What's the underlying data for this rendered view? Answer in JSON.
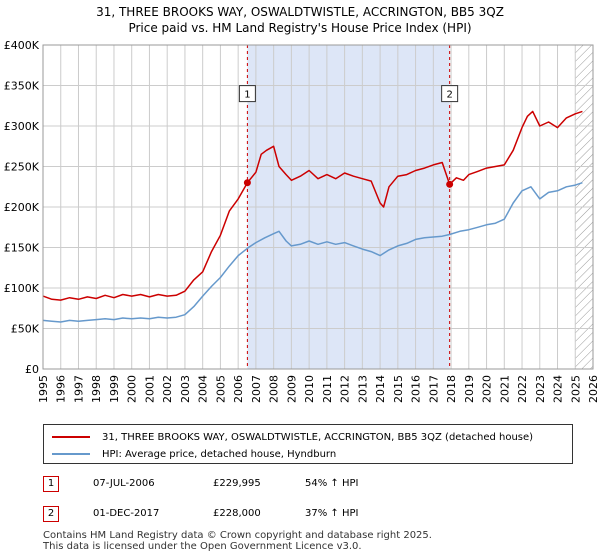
{
  "title_line1": "31, THREE BROOKS WAY, OSWALDTWISTLE, ACCRINGTON, BB5 3QZ",
  "title_line2": "Price paid vs. HM Land Registry's House Price Index (HPI)",
  "chart_data": {
    "type": "line",
    "title": "31, THREE BROOKS WAY, OSWALDTWISTLE, ACCRINGTON, BB5 3QZ - Price paid vs. HM Land Registry's House Price Index (HPI)",
    "xlabel": "",
    "ylabel": "",
    "xlim": [
      1995,
      2026
    ],
    "ylim": [
      0,
      400000
    ],
    "y_ticks": [
      0,
      50000,
      100000,
      150000,
      200000,
      250000,
      300000,
      350000,
      400000
    ],
    "y_tick_labels": [
      "£0",
      "£50K",
      "£100K",
      "£150K",
      "£200K",
      "£250K",
      "£300K",
      "£350K",
      "£400K"
    ],
    "x_ticks": [
      1995,
      1996,
      1997,
      1998,
      1999,
      2000,
      2001,
      2002,
      2003,
      2004,
      2005,
      2006,
      2007,
      2008,
      2009,
      2010,
      2011,
      2012,
      2013,
      2014,
      2015,
      2016,
      2017,
      2018,
      2019,
      2020,
      2021,
      2022,
      2023,
      2024,
      2025,
      2026
    ],
    "x_tick_labels": [
      "1995",
      "1996",
      "1997",
      "1998",
      "1999",
      "2000",
      "2001",
      "2002",
      "2003",
      "2004",
      "2005",
      "2006",
      "2007",
      "2008",
      "2009",
      "2010",
      "2011",
      "2012",
      "2013",
      "2014",
      "2015",
      "2016",
      "2017",
      "2018",
      "2019",
      "2020",
      "2021",
      "2022",
      "2023",
      "2024",
      "2025",
      "2026"
    ],
    "grid": true,
    "shaded_period": [
      2006.52,
      2017.92
    ],
    "forecast_hatch_from": 2025.0,
    "series": [
      {
        "name": "31, THREE BROOKS WAY, OSWALDTWISTLE, ACCRINGTON, BB5 3QZ (detached house)",
        "color": "#cc0000",
        "x": [
          1995.0,
          1995.5,
          1996.0,
          1996.5,
          1997.0,
          1997.5,
          1998.0,
          1998.5,
          1999.0,
          1999.5,
          2000.0,
          2000.5,
          2001.0,
          2001.5,
          2002.0,
          2002.5,
          2003.0,
          2003.5,
          2004.0,
          2004.5,
          2005.0,
          2005.5,
          2006.0,
          2006.52,
          2007.0,
          2007.3,
          2007.6,
          2008.0,
          2008.3,
          2008.7,
          2009.0,
          2009.5,
          2010.0,
          2010.5,
          2011.0,
          2011.5,
          2012.0,
          2012.5,
          2013.0,
          2013.5,
          2014.0,
          2014.2,
          2014.5,
          2015.0,
          2015.5,
          2016.0,
          2016.5,
          2017.0,
          2017.5,
          2017.92,
          2018.3,
          2018.7,
          2019.0,
          2019.5,
          2020.0,
          2020.5,
          2021.0,
          2021.5,
          2022.0,
          2022.3,
          2022.6,
          2023.0,
          2023.5,
          2024.0,
          2024.5,
          2025.0,
          2025.4
        ],
        "values": [
          90000,
          86000,
          85000,
          88000,
          86000,
          89000,
          87000,
          91000,
          88000,
          92000,
          90000,
          92000,
          89000,
          92000,
          90000,
          91000,
          96000,
          110000,
          120000,
          145000,
          165000,
          195000,
          210000,
          229995,
          243000,
          265000,
          270000,
          275000,
          250000,
          240000,
          233000,
          238000,
          245000,
          235000,
          240000,
          235000,
          242000,
          238000,
          235000,
          232000,
          205000,
          200000,
          225000,
          238000,
          240000,
          245000,
          248000,
          252000,
          255000,
          228000,
          236000,
          233000,
          240000,
          244000,
          248000,
          250000,
          252000,
          270000,
          298000,
          312000,
          318000,
          300000,
          305000,
          298000,
          310000,
          315000,
          318000
        ]
      },
      {
        "name": "HPI: Average price, detached house, Hyndburn",
        "color": "#6699cc",
        "x": [
          1995.0,
          1995.5,
          1996.0,
          1996.5,
          1997.0,
          1997.5,
          1998.0,
          1998.5,
          1999.0,
          1999.5,
          2000.0,
          2000.5,
          2001.0,
          2001.5,
          2002.0,
          2002.5,
          2003.0,
          2003.5,
          2004.0,
          2004.5,
          2005.0,
          2005.5,
          2006.0,
          2006.52,
          2007.0,
          2007.5,
          2008.0,
          2008.3,
          2008.7,
          2009.0,
          2009.5,
          2010.0,
          2010.5,
          2011.0,
          2011.5,
          2012.0,
          2012.5,
          2013.0,
          2013.5,
          2014.0,
          2014.5,
          2015.0,
          2015.5,
          2016.0,
          2016.5,
          2017.0,
          2017.5,
          2017.92,
          2018.5,
          2019.0,
          2019.5,
          2020.0,
          2020.5,
          2021.0,
          2021.5,
          2022.0,
          2022.5,
          2023.0,
          2023.5,
          2024.0,
          2024.5,
          2025.0,
          2025.4
        ],
        "values": [
          60000,
          59000,
          58000,
          60000,
          59000,
          60000,
          61000,
          62000,
          61000,
          63000,
          62000,
          63000,
          62000,
          64000,
          63000,
          64000,
          67000,
          77000,
          90000,
          102000,
          113000,
          127000,
          140000,
          149000,
          156000,
          162000,
          167000,
          170000,
          158000,
          152000,
          154000,
          158000,
          154000,
          157000,
          154000,
          156000,
          152000,
          148000,
          145000,
          140000,
          147000,
          152000,
          155000,
          160000,
          162000,
          163000,
          164000,
          166000,
          170000,
          172000,
          175000,
          178000,
          180000,
          185000,
          205000,
          220000,
          225000,
          210000,
          218000,
          220000,
          225000,
          227000,
          230000
        ]
      }
    ],
    "annotations": [
      {
        "label": "1",
        "x": 2006.52,
        "y": 229995,
        "box_y": 340000
      },
      {
        "label": "2",
        "x": 2017.92,
        "y": 228000,
        "box_y": 340000
      }
    ]
  },
  "legend": {
    "property_label": "31, THREE BROOKS WAY, OSWALDTWISTLE, ACCRINGTON, BB5 3QZ (detached house)",
    "hpi_label": "HPI: Average price, detached house, Hyndburn"
  },
  "sales": [
    {
      "num": "1",
      "date": "07-JUL-2006",
      "price": "£229,995",
      "hpi": "54% ↑ HPI"
    },
    {
      "num": "2",
      "date": "01-DEC-2017",
      "price": "£228,000",
      "hpi": "37% ↑ HPI"
    }
  ],
  "footer": {
    "line1": "Contains HM Land Registry data © Crown copyright and database right 2025.",
    "line2": "This data is licensed under the Open Government Licence v3.0."
  },
  "colors": {
    "property": "#cc0000",
    "hpi": "#6699cc",
    "shade": "#dde6f7",
    "grid": "#cccccc"
  }
}
